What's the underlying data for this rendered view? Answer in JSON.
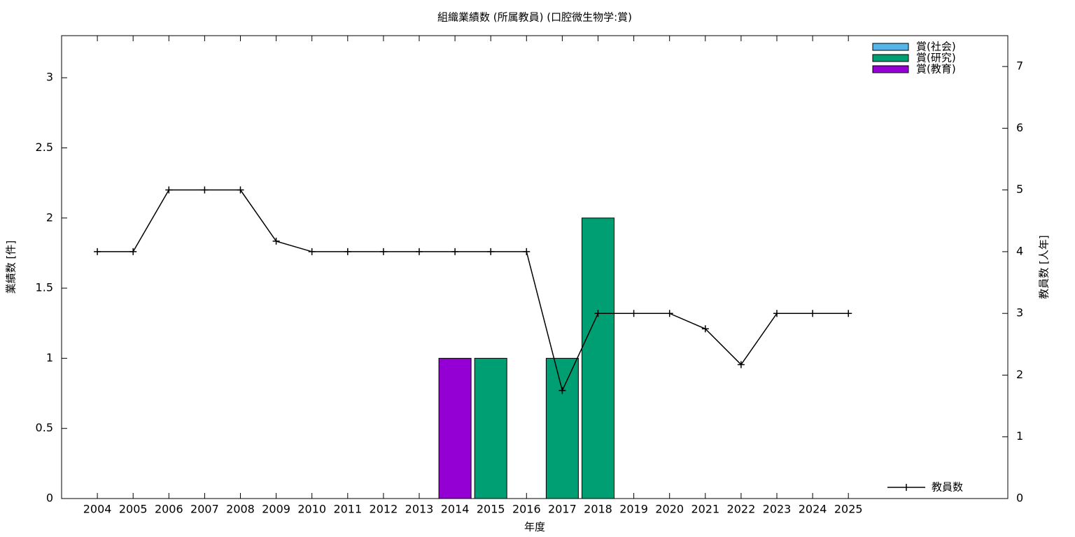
{
  "chart_data": {
    "type": "bar",
    "stacked": true,
    "title": "組織業績数 (所属教員) (口腔微生物学:賞)",
    "x_label": "年度",
    "y_label": "業績数 [件]",
    "y2_label": "教員数 [人年]",
    "categories": [
      "2004",
      "2005",
      "2006",
      "2007",
      "2008",
      "2009",
      "2010",
      "2011",
      "2012",
      "2013",
      "2014",
      "2015",
      "2016",
      "2017",
      "2018",
      "2019",
      "2020",
      "2021",
      "2022",
      "2023",
      "2024",
      "2025"
    ],
    "series": [
      {
        "name": "賞(社会)",
        "color": "#56b4e9",
        "values": [
          0,
          0,
          0,
          0,
          0,
          0,
          0,
          0,
          0,
          0,
          0,
          0,
          0,
          0,
          0,
          0,
          0,
          0,
          0,
          0,
          0,
          0
        ]
      },
      {
        "name": "賞(研究)",
        "color": "#009e73",
        "values": [
          0,
          0,
          0,
          0,
          0,
          0,
          0,
          0,
          0,
          0,
          0,
          1,
          0,
          1,
          2,
          0,
          0,
          0,
          0,
          0,
          0,
          0
        ]
      },
      {
        "name": "賞(教育)",
        "color": "#9400d3",
        "values": [
          0,
          0,
          0,
          0,
          0,
          0,
          0,
          0,
          0,
          0,
          1,
          0,
          0,
          0,
          0,
          0,
          0,
          0,
          0,
          0,
          0,
          0
        ]
      },
      {
        "name": "教員数",
        "type": "line",
        "axis": "y2",
        "color": "#000000",
        "values": [
          4,
          4,
          5,
          5,
          5,
          4.17,
          4,
          4,
          4,
          4,
          4,
          4,
          4,
          1.75,
          3,
          3,
          3,
          2.75,
          2.17,
          3,
          3,
          3
        ]
      }
    ],
    "ylim": [
      0,
      3.3
    ],
    "yticks": [
      0,
      0.5,
      1,
      1.5,
      2,
      2.5,
      3
    ],
    "y2lim": [
      0,
      7.5
    ],
    "y2ticks": [
      0,
      1,
      2,
      3,
      4,
      5,
      6,
      7
    ],
    "legend": "top-right"
  }
}
